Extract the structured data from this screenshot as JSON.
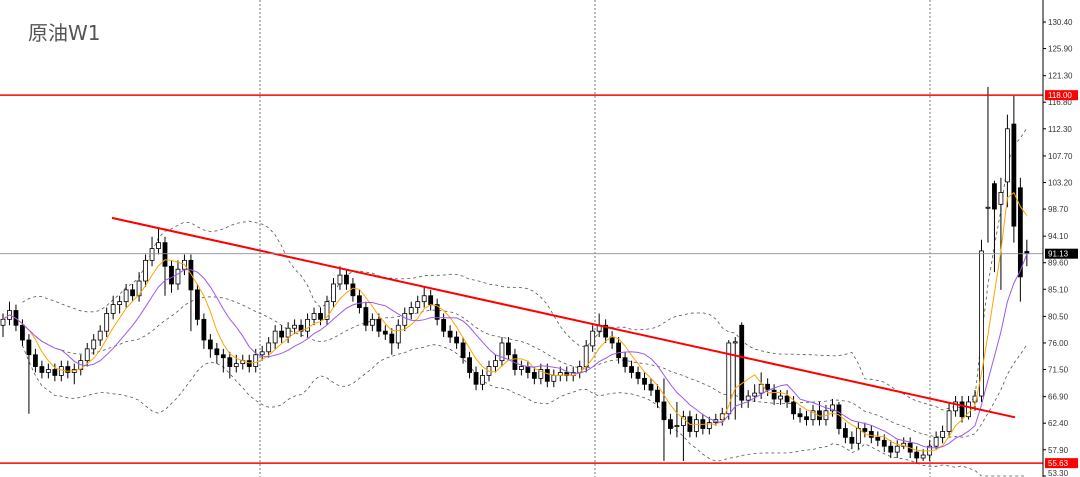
{
  "title": "原油W1",
  "chart_data": {
    "type": "candlestick",
    "title": "原油W1",
    "timeframe": "W1",
    "ylim": [
      53.3,
      132.5
    ],
    "y_ticks": [
      "130.40",
      "125.90",
      "121.30",
      "116.80",
      "112.30",
      "107.70",
      "103.20",
      "98.70",
      "94.10",
      "89.60",
      "85.10",
      "80.50",
      "76.00",
      "71.50",
      "66.90",
      "62.40",
      "57.90",
      "53.30"
    ],
    "grid": "vertical dotted separators",
    "ohlc_format": [
      "open",
      "high",
      "low",
      "close"
    ],
    "ohlc": [
      [
        79,
        81,
        77,
        80
      ],
      [
        80,
        83,
        79,
        81.5
      ],
      [
        81.5,
        82.5,
        78,
        79
      ],
      [
        79,
        80,
        75.5,
        76.5
      ],
      [
        76.5,
        77.5,
        64,
        74
      ],
      [
        74,
        75,
        71,
        72
      ],
      [
        72,
        73,
        70,
        71
      ],
      [
        71,
        72.5,
        70,
        71.5
      ],
      [
        71.5,
        72.5,
        69.5,
        70.5
      ],
      [
        70.5,
        73,
        69.5,
        72
      ],
      [
        72,
        73,
        70,
        71
      ],
      [
        71,
        72.5,
        69,
        71.5
      ],
      [
        71.5,
        74,
        70.5,
        73
      ],
      [
        73,
        76,
        72,
        75
      ],
      [
        75,
        77.5,
        74,
        76.5
      ],
      [
        76.5,
        79,
        75.5,
        78
      ],
      [
        78,
        82,
        77,
        81
      ],
      [
        81,
        84,
        80,
        82.5
      ],
      [
        82.5,
        84,
        81,
        83
      ],
      [
        83,
        86,
        82,
        85
      ],
      [
        85,
        86,
        83,
        84
      ],
      [
        84,
        88,
        83,
        86.5
      ],
      [
        86.5,
        91,
        85.5,
        90
      ],
      [
        90,
        94,
        89,
        92
      ],
      [
        92,
        95.5,
        91,
        93
      ],
      [
        93,
        94,
        84,
        89
      ],
      [
        89,
        90,
        84.5,
        86
      ],
      [
        86,
        90,
        85,
        88.5
      ],
      [
        88.5,
        91,
        87.5,
        90
      ],
      [
        90,
        91,
        78,
        85
      ],
      [
        85,
        86,
        79,
        80
      ],
      [
        80,
        81,
        75,
        76.5
      ],
      [
        76.5,
        77.5,
        73.5,
        75
      ],
      [
        75,
        76,
        72.5,
        74
      ],
      [
        74,
        75,
        71,
        73.5
      ],
      [
        73.5,
        74.5,
        70,
        72
      ],
      [
        72,
        74,
        71,
        72.5
      ],
      [
        72.5,
        74,
        71.5,
        73
      ],
      [
        73,
        74,
        71,
        72
      ],
      [
        72,
        75,
        71,
        74
      ],
      [
        74,
        75.5,
        73,
        74.5
      ],
      [
        74.5,
        77,
        73.5,
        76
      ],
      [
        76,
        79,
        75,
        78
      ],
      [
        78,
        79,
        76,
        77
      ],
      [
        77,
        79.5,
        76,
        78.5
      ],
      [
        78.5,
        80,
        77.5,
        79
      ],
      [
        79,
        80,
        77,
        78
      ],
      [
        78,
        81,
        77,
        80
      ],
      [
        80,
        82,
        79,
        81
      ],
      [
        81,
        82,
        79,
        80
      ],
      [
        80,
        84,
        79,
        83
      ],
      [
        83,
        87,
        82,
        86
      ],
      [
        86,
        89,
        85,
        87.5
      ],
      [
        87.5,
        88.5,
        85,
        86
      ],
      [
        86,
        87,
        83,
        84
      ],
      [
        84,
        85,
        81,
        82
      ],
      [
        82,
        83,
        78,
        79
      ],
      [
        79,
        81,
        78,
        80
      ],
      [
        80,
        81,
        77,
        78
      ],
      [
        78,
        79,
        76.5,
        77.5
      ],
      [
        77.5,
        78.5,
        74,
        76
      ],
      [
        76,
        80,
        75,
        79
      ],
      [
        79,
        82,
        78,
        81
      ],
      [
        81,
        83,
        80,
        82
      ],
      [
        82,
        84,
        81,
        83
      ],
      [
        83,
        85.5,
        82,
        84
      ],
      [
        84,
        85,
        81.5,
        82.5
      ],
      [
        82.5,
        83.5,
        79,
        80
      ],
      [
        80,
        81,
        77,
        78
      ],
      [
        78,
        79,
        76,
        77
      ],
      [
        77,
        78,
        75,
        76
      ],
      [
        76,
        77,
        72.5,
        73.5
      ],
      [
        73.5,
        74.5,
        70,
        71
      ],
      [
        71,
        72,
        68,
        69
      ],
      [
        69,
        71.5,
        68,
        70.5
      ],
      [
        70.5,
        73,
        69.5,
        72
      ],
      [
        72,
        74,
        71,
        73
      ],
      [
        73,
        77,
        72,
        76
      ],
      [
        76,
        77,
        73,
        74
      ],
      [
        74,
        75,
        70.5,
        71.5
      ],
      [
        71.5,
        73,
        70.5,
        72
      ],
      [
        72,
        73,
        70,
        71
      ],
      [
        71,
        72,
        69,
        70
      ],
      [
        70,
        72.5,
        69,
        71.5
      ],
      [
        71.5,
        72.5,
        68.5,
        69.5
      ],
      [
        69.5,
        71.5,
        68.5,
        70.5
      ],
      [
        70.5,
        72,
        69.5,
        71
      ],
      [
        71,
        72,
        69.5,
        70.5
      ],
      [
        70.5,
        72,
        69.5,
        71
      ],
      [
        71,
        73,
        70,
        72
      ],
      [
        72,
        76.5,
        71,
        75.5
      ],
      [
        75.5,
        79,
        74.5,
        78
      ],
      [
        78,
        81,
        77,
        79
      ],
      [
        79,
        80,
        76,
        77
      ],
      [
        77,
        78,
        75,
        76
      ],
      [
        76,
        77,
        72.5,
        73.5
      ],
      [
        73.5,
        74.5,
        71,
        72
      ],
      [
        72,
        73,
        70,
        71
      ],
      [
        71,
        72,
        69,
        70
      ],
      [
        70,
        71,
        68,
        69
      ],
      [
        69,
        70,
        67,
        68
      ],
      [
        68,
        69,
        65,
        66
      ],
      [
        66,
        70,
        56,
        63
      ],
      [
        63,
        64,
        60.5,
        61.5
      ],
      [
        62,
        66,
        60,
        62
      ],
      [
        62,
        64.5,
        56,
        63.5
      ],
      [
        63.5,
        64.5,
        60,
        61
      ],
      [
        61,
        64,
        60,
        63
      ],
      [
        63,
        64,
        60.5,
        61.5
      ],
      [
        61.5,
        63.5,
        60.5,
        62.5
      ],
      [
        62.5,
        64,
        62,
        63
      ],
      [
        63,
        65,
        62,
        64
      ],
      [
        64,
        76.5,
        63,
        76
      ],
      [
        76,
        77,
        63,
        76.2
      ],
      [
        79,
        79.5,
        65,
        66.3
      ],
      [
        66.3,
        68,
        65,
        67
      ],
      [
        67,
        69,
        66,
        67.5
      ],
      [
        67.5,
        71,
        66.5,
        69
      ],
      [
        69,
        70,
        67,
        68
      ],
      [
        68,
        69,
        65.5,
        66.5
      ],
      [
        66.5,
        68,
        65.5,
        67
      ],
      [
        67,
        68,
        65,
        66
      ],
      [
        66,
        67,
        63,
        64
      ],
      [
        64,
        65,
        62.5,
        63.5
      ],
      [
        63.5,
        64.5,
        62,
        63
      ],
      [
        63,
        65.5,
        62,
        64.5
      ],
      [
        64.5,
        66,
        62,
        63
      ],
      [
        63,
        65.5,
        62,
        64.5
      ],
      [
        64.5,
        66.5,
        63.5,
        65.5
      ],
      [
        65.5,
        66,
        60.5,
        61.5
      ],
      [
        61.5,
        62.5,
        59,
        60
      ],
      [
        60,
        61,
        58,
        59
      ],
      [
        59,
        62.5,
        58,
        61.5
      ],
      [
        61.5,
        62.5,
        60,
        61
      ],
      [
        61,
        62,
        59,
        60
      ],
      [
        60,
        61,
        58.5,
        59.5
      ],
      [
        59.5,
        60.5,
        57.5,
        58.5
      ],
      [
        58.5,
        59.5,
        56.5,
        57.5
      ],
      [
        57.5,
        59.5,
        56.5,
        58.5
      ],
      [
        58.5,
        60,
        58,
        59
      ],
      [
        59,
        60,
        56.5,
        57.5
      ],
      [
        57.5,
        58.5,
        55.5,
        56.5
      ],
      [
        56.5,
        58,
        56,
        57
      ],
      [
        57,
        59.5,
        56,
        58.5
      ],
      [
        58.5,
        61,
        58,
        60
      ],
      [
        60,
        62,
        59,
        61
      ],
      [
        61,
        66,
        60,
        64.5
      ],
      [
        64.5,
        67,
        63.5,
        66
      ],
      [
        66,
        67,
        62.5,
        63.5
      ],
      [
        63.5,
        67,
        63,
        66
      ],
      [
        66,
        68,
        64.5,
        67
      ],
      [
        67,
        93.5,
        66,
        91.6
      ],
      [
        99,
        119.4,
        93,
        99
      ],
      [
        103,
        103.5,
        88,
        98.7
      ],
      [
        99.5,
        104,
        85,
        101.5
      ],
      [
        103.3,
        114.7,
        99,
        112.3
      ],
      [
        113.1,
        117.9,
        93,
        95.8
      ],
      [
        102.3,
        104,
        83,
        87.2
      ],
      [
        91.5,
        93.5,
        89,
        91.13
      ]
    ],
    "horizontal_lines": [
      {
        "price": 118.0,
        "label": "118.00",
        "color": "#ff0000"
      },
      {
        "price": 55.63,
        "label": "55.63",
        "color": "#ff0000"
      }
    ],
    "current_price": {
      "price": 91.13,
      "label": "91.13",
      "color": "#000000",
      "line_color": "#8a9199"
    },
    "trendline": {
      "from_price": 97.2,
      "to_price": 63.4,
      "from_bar": 17,
      "to_bar": 156,
      "color": "#ff0000"
    },
    "indicators": {
      "ma_fast_color": "#ffa500",
      "ma_slow_color": "#9b59f0",
      "bollinger_color": "#555555"
    },
    "colors": {
      "bull_body": "#ffffff",
      "bear_body": "#000000",
      "wick": "#000000",
      "separator": "#555555"
    }
  }
}
